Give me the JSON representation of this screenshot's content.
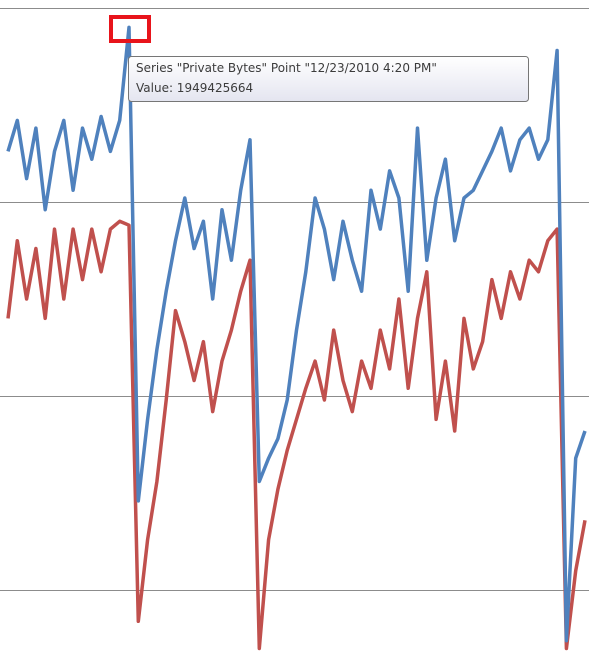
{
  "chart_data": {
    "type": "line",
    "ylim": [
      310000000,
      2020000000
    ],
    "yticks": [
      500000000,
      1000000000,
      1500000000,
      2000000000
    ],
    "grid": true,
    "series": [
      {
        "color": "#c0504d",
        "values": [
          1200000000,
          1400000000,
          1250000000,
          1380000000,
          1200000000,
          1430000000,
          1250000000,
          1430000000,
          1300000000,
          1430000000,
          1320000000,
          1430000000,
          1450000000,
          1440000000,
          420000000,
          630000000,
          780000000,
          990000000,
          1220000000,
          1140000000,
          1040000000,
          1140000000,
          960000000,
          1090000000,
          1170000000,
          1270000000,
          1350000000,
          350000000,
          630000000,
          760000000,
          860000000,
          940000000,
          1020000000,
          1090000000,
          990000000,
          1170000000,
          1040000000,
          960000000,
          1090000000,
          1020000000,
          1170000000,
          1070000000,
          1250000000,
          1020000000,
          1200000000,
          1320000000,
          940000000,
          1090000000,
          910000000,
          1200000000,
          1070000000,
          1140000000,
          1300000000,
          1200000000,
          1320000000,
          1250000000,
          1350000000,
          1320000000,
          1400000000,
          1430000000,
          350000000,
          550000000,
          680000000
        ]
      },
      {
        "color": "#4f81bd",
        "values": [
          1630000000,
          1710000000,
          1560000000,
          1690000000,
          1480000000,
          1630000000,
          1710000000,
          1530000000,
          1690000000,
          1610000000,
          1720000000,
          1630000000,
          1710000000,
          1949425664,
          730000000,
          940000000,
          1120000000,
          1270000000,
          1400000000,
          1510000000,
          1380000000,
          1450000000,
          1250000000,
          1480000000,
          1350000000,
          1530000000,
          1660000000,
          780000000,
          840000000,
          890000000,
          990000000,
          1170000000,
          1320000000,
          1510000000,
          1430000000,
          1300000000,
          1450000000,
          1350000000,
          1270000000,
          1530000000,
          1430000000,
          1580000000,
          1510000000,
          1270000000,
          1690000000,
          1350000000,
          1510000000,
          1610000000,
          1400000000,
          1510000000,
          1530000000,
          1580000000,
          1630000000,
          1690000000,
          1580000000,
          1660000000,
          1690000000,
          1610000000,
          1660000000,
          1890000000,
          370000000,
          840000000,
          910000000
        ]
      }
    ],
    "tooltip": {
      "line1": "Series \"Private Bytes\" Point \"12/23/2010 4:20 PM\"",
      "line2": "Value: 1949425664"
    }
  }
}
